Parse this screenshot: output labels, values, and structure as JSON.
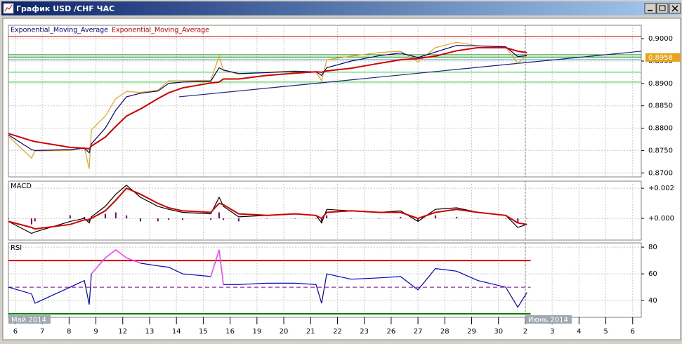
{
  "window": {
    "title": "График USD /CHF  ЧАС"
  },
  "x_axis": {
    "xlim": [
      -0.26,
      23.32
    ],
    "xticks": [
      {
        "value": 0,
        "label": "6"
      },
      {
        "value": 1,
        "label": "7"
      },
      {
        "value": 2,
        "label": "8"
      },
      {
        "value": 3,
        "label": "9"
      },
      {
        "value": 4,
        "label": "12"
      },
      {
        "value": 5,
        "label": "13"
      },
      {
        "value": 6,
        "label": "14"
      },
      {
        "value": 7,
        "label": "15"
      },
      {
        "value": 8,
        "label": "16"
      },
      {
        "value": 9,
        "label": "19"
      },
      {
        "value": 10,
        "label": "20"
      },
      {
        "value": 11,
        "label": "21"
      },
      {
        "value": 12,
        "label": "22"
      },
      {
        "value": 13,
        "label": "23"
      },
      {
        "value": 14,
        "label": "26"
      },
      {
        "value": 15,
        "label": "27"
      },
      {
        "value": 16,
        "label": "28"
      },
      {
        "value": 17,
        "label": "29"
      },
      {
        "value": 18,
        "label": "30"
      },
      {
        "value": 19,
        "label": "2"
      },
      {
        "value": 20,
        "label": "3"
      },
      {
        "value": 21,
        "label": "4"
      },
      {
        "value": 22,
        "label": "5"
      },
      {
        "value": 23,
        "label": "6"
      }
    ],
    "month_labels": [
      {
        "value": -0.26,
        "label": "Май 2014"
      },
      {
        "value": 19,
        "label": "Июнь 2014"
      }
    ],
    "separator": 19
  },
  "chart_data": [
    {
      "type": "line",
      "legend": "top-left",
      "grid": true,
      "x": [
        -0.26,
        0.6,
        0.73,
        2.04,
        2.57,
        2.75,
        2.83,
        3.35,
        3.74,
        4.14,
        4.66,
        5.31,
        5.71,
        6.23,
        7.28,
        7.59,
        7.75,
        8.32,
        9.37,
        10.42,
        11.2,
        11.41,
        11.6,
        12.51,
        13.56,
        14.35,
        15.0,
        15.65,
        16.44,
        17.23,
        18.27,
        18.72,
        19.06
      ],
      "ylim": [
        0.8691,
        0.903
      ],
      "yticks": [
        {
          "value": 0.87,
          "label": "0.8700"
        },
        {
          "value": 0.875,
          "label": "0.8750"
        },
        {
          "value": 0.88,
          "label": "0.8800"
        },
        {
          "value": 0.885,
          "label": "0.8850"
        },
        {
          "value": 0.89,
          "label": "0.8900"
        },
        {
          "value": 0.895,
          "label": "0.8950"
        },
        {
          "value": 0.9,
          "label": "0.9000"
        }
      ],
      "series": [
        {
          "color": "#e8a317",
          "values": [
            0.8782,
            0.8733,
            0.8749,
            0.875,
            0.8757,
            0.8709,
            0.8796,
            0.8827,
            0.8866,
            0.8882,
            0.888,
            0.8885,
            0.8906,
            0.8906,
            0.8907,
            0.8961,
            0.8929,
            0.8921,
            0.8925,
            0.8928,
            0.8925,
            0.8906,
            0.8953,
            0.8961,
            0.8969,
            0.8972,
            0.8948,
            0.898,
            0.8992,
            0.8984,
            0.8981,
            0.8945,
            0.8964
          ]
        },
        {
          "name": "Exponential_Moving_Average",
          "color": "#000080",
          "values": [
            0.8785,
            0.8752,
            0.875,
            0.8752,
            0.8755,
            0.8745,
            0.8765,
            0.88,
            0.884,
            0.887,
            0.8878,
            0.8883,
            0.89,
            0.8903,
            0.8905,
            0.8935,
            0.893,
            0.8922,
            0.8924,
            0.8927,
            0.8926,
            0.8918,
            0.8935,
            0.895,
            0.8962,
            0.8968,
            0.8958,
            0.897,
            0.8985,
            0.8984,
            0.8982,
            0.896,
            0.8962
          ]
        },
        {
          "name": "Exponential_Moving_Average",
          "color": "#d00000",
          "width": 2,
          "values": [
            0.8788,
            0.8772,
            0.877,
            0.8757,
            0.8755,
            0.8754,
            0.876,
            0.878,
            0.8804,
            0.8827,
            0.8843,
            0.8866,
            0.8879,
            0.889,
            0.8901,
            0.8903,
            0.891,
            0.891,
            0.8918,
            0.8923,
            0.8926,
            0.8925,
            0.8928,
            0.8934,
            0.8945,
            0.8953,
            0.8956,
            0.8961,
            0.8973,
            0.898,
            0.898,
            0.8972,
            0.8969
          ]
        }
      ],
      "hlines": [
        {
          "value": 0.9005,
          "color": "#d00000"
        },
        {
          "value": 0.8964,
          "color": "#008000"
        },
        {
          "value": 0.8959,
          "color": "#008000"
        },
        {
          "value": 0.8953,
          "color": "#40a0a0"
        },
        {
          "value": 0.8925,
          "color": "#2ecc40"
        },
        {
          "value": 0.8903,
          "color": "#2ecc40"
        }
      ],
      "trendline": {
        "x": [
          6.1,
          23.32
        ],
        "values": [
          0.887,
          0.8972
        ],
        "color": "#1a237e"
      },
      "last_price": 0.8958
    },
    {
      "type": "line",
      "title": "MACD",
      "grid": true,
      "x": [
        -0.26,
        0.6,
        0.73,
        2.04,
        2.57,
        2.75,
        2.83,
        3.35,
        3.74,
        4.14,
        4.66,
        5.31,
        5.71,
        6.23,
        7.28,
        7.59,
        7.75,
        8.32,
        9.37,
        10.42,
        11.2,
        11.41,
        11.6,
        12.51,
        13.56,
        14.35,
        15.0,
        15.65,
        16.44,
        17.23,
        18.27,
        18.72,
        19.06
      ],
      "ylim": [
        -0.00144,
        0.00247
      ],
      "yticks": [
        {
          "value": 0,
          "label": "+0.000"
        },
        {
          "value": 0.002,
          "label": "+0.002"
        }
      ],
      "series": [
        {
          "color": "#800080",
          "style": "bar",
          "values": [
            0,
            -0.0004,
            -0.0002,
            0.0002,
            0.0001,
            -0.0002,
            0.0001,
            0.0003,
            0.0004,
            0.0002,
            -0.0002,
            -0.0002,
            -0.0001,
            -0.0001,
            -0.0001,
            0.0004,
            -0.0001,
            -0.0002,
            0,
            0,
            0,
            -0.0003,
            0.0002,
            0,
            0,
            0.0001,
            -0.0002,
            0.0002,
            0.0001,
            0,
            0,
            -0.0003,
            0
          ]
        },
        {
          "color": "#000000",
          "values": [
            -0.0002,
            -0.001,
            -0.0009,
            -0.0002,
            0,
            -0.0003,
            0.0001,
            0.0008,
            0.0016,
            0.0022,
            0.0014,
            0.0008,
            0.0006,
            0.0004,
            0.0003,
            0.0014,
            0.0008,
            0.0001,
            0.0002,
            0.0003,
            0.0002,
            -0.0003,
            0.0006,
            0.0005,
            0.0004,
            0.0005,
            -0.0002,
            0.0006,
            0.0007,
            0.0004,
            0.0002,
            -0.0006,
            -0.0004
          ]
        },
        {
          "color": "#d00000",
          "width": 2,
          "values": [
            -0.0002,
            -0.0006,
            -0.0007,
            -0.0004,
            -0.0001,
            -0.0001,
            0,
            0.0005,
            0.0012,
            0.002,
            0.0016,
            0.001,
            0.0007,
            0.0005,
            0.0004,
            0.001,
            0.0009,
            0.0003,
            0.0002,
            0.0003,
            0.0002,
            0,
            0.0004,
            0.0005,
            0.0004,
            0.0004,
            0,
            0.0004,
            0.0006,
            0.0004,
            0.0002,
            -0.0003,
            -0.0004
          ]
        }
      ]
    },
    {
      "type": "line",
      "title": "RSI",
      "grid": true,
      "x": [
        -0.26,
        0.6,
        0.73,
        2.04,
        2.57,
        2.75,
        2.83,
        3.35,
        3.74,
        4.14,
        4.66,
        5.31,
        5.71,
        6.23,
        7.28,
        7.59,
        7.75,
        8.32,
        9.37,
        10.42,
        11.2,
        11.41,
        11.6,
        12.51,
        13.56,
        14.35,
        15.0,
        15.65,
        16.44,
        17.23,
        18.27,
        18.72,
        19.06
      ],
      "ylim": [
        27.4,
        83.2
      ],
      "yticks": [
        40,
        60,
        80
      ],
      "series": [
        {
          "color": "#0000c0",
          "overbought_color": "#ff40ff",
          "values": [
            50,
            45,
            38,
            50,
            55,
            37,
            60,
            72,
            78,
            72,
            68,
            66,
            65,
            60,
            58,
            78,
            52,
            52,
            53,
            53,
            52,
            38,
            60,
            56,
            57,
            58,
            48,
            64,
            62,
            55,
            50,
            35,
            46
          ]
        }
      ],
      "hlines": [
        {
          "value": 70,
          "color": "#d00000",
          "width": 2,
          "overbought": true
        },
        {
          "value": 50,
          "color": "#800080",
          "dash": true
        },
        {
          "value": 30,
          "color": "#008000",
          "width": 2
        }
      ]
    }
  ]
}
